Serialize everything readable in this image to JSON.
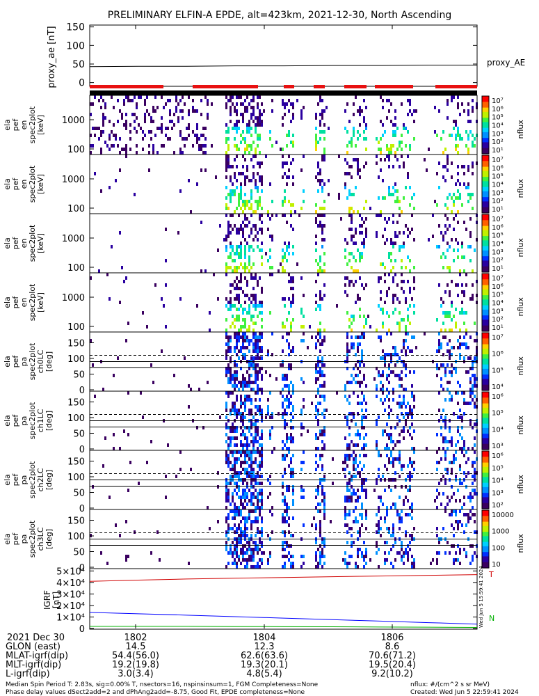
{
  "page_title": "PRELIMINARY ELFIN-A EPDE, alt=423km, 2021-12-30, North Ascending",
  "chart_data": [
    {
      "type": "line",
      "ylabel": "proxy_ae [nT]",
      "yticks": [
        150,
        100,
        50,
        0
      ],
      "ylim": [
        -10,
        155
      ],
      "series": [
        {
          "name": "proxy_AE",
          "values": [
            43,
            44,
            44,
            45,
            45,
            46,
            46,
            47,
            47
          ]
        }
      ]
    },
    {
      "type": "heatmap",
      "ylabel_lines": [
        "ela",
        "pef",
        "en",
        "spec2plot",
        "[keV]"
      ],
      "yticks": [
        1000,
        100
      ],
      "colorbar_label": "nflux",
      "colorbar_ticks": [
        "10⁷",
        "10⁶",
        "10⁵",
        "10⁴",
        "10³",
        "10²",
        "10¹"
      ]
    },
    {
      "type": "heatmap",
      "ylabel_lines": [
        "ela",
        "pef",
        "en",
        "spec2plot",
        "[keV]"
      ],
      "yticks": [
        1000,
        100
      ],
      "colorbar_label": "nflux",
      "colorbar_ticks": [
        "10⁷",
        "10⁶",
        "10⁵",
        "10⁴",
        "10³",
        "10²",
        "10¹"
      ]
    },
    {
      "type": "heatmap",
      "ylabel_lines": [
        "ela",
        "pef",
        "en",
        "spec2plot",
        "[keV]"
      ],
      "yticks": [
        1000,
        100
      ],
      "colorbar_label": "nflux",
      "colorbar_ticks": [
        "10⁷",
        "10⁶",
        "10⁵",
        "10⁴",
        "10³",
        "10²",
        "10¹"
      ]
    },
    {
      "type": "heatmap",
      "ylabel_lines": [
        "ela",
        "pef",
        "en",
        "spec2plot",
        "[keV]"
      ],
      "yticks": [
        1000,
        100
      ],
      "colorbar_label": "nflux",
      "colorbar_ticks": [
        "10⁷",
        "10⁶",
        "10⁵",
        "10⁴",
        "10³",
        "10²",
        "10¹"
      ]
    },
    {
      "type": "heatmap",
      "ylabel_lines": [
        "ela",
        "pef",
        "pa",
        "spec2plot",
        "ch0LC",
        "[deg]"
      ],
      "yticks": [
        150,
        100,
        50,
        0
      ],
      "colorbar_label": "nflux",
      "colorbar_ticks": [
        "10⁷",
        "10⁶",
        "10⁵",
        "10⁴"
      ]
    },
    {
      "type": "heatmap",
      "ylabel_lines": [
        "ela",
        "pef",
        "pa",
        "spec2plot",
        "ch1LC",
        "[deg]"
      ],
      "yticks": [
        150,
        100,
        50,
        0
      ],
      "colorbar_label": "nflux",
      "colorbar_ticks": [
        "10⁶",
        "10⁵",
        "10⁴",
        "10³"
      ]
    },
    {
      "type": "heatmap",
      "ylabel_lines": [
        "ela",
        "pef",
        "pa",
        "spec2plot",
        "ch2LC",
        "[deg]"
      ],
      "yticks": [
        150,
        100,
        50,
        0
      ],
      "colorbar_label": "nflux",
      "colorbar_ticks": [
        "10⁶",
        "10⁵",
        "10⁴",
        "10³",
        "10²"
      ]
    },
    {
      "type": "heatmap",
      "ylabel_lines": [
        "ela",
        "pef",
        "pa",
        "spec2plot",
        "ch3LC",
        "[deg]"
      ],
      "yticks": [
        150,
        100,
        50,
        0
      ],
      "colorbar_label": "nflux",
      "colorbar_ticks": [
        "10000",
        "1000",
        "100",
        "10"
      ]
    },
    {
      "type": "line",
      "ylabel_lines": [
        "IGRF",
        "[nT]"
      ],
      "yticks": [
        "5×10⁴",
        "4×10⁴",
        "3×10⁴",
        "2×10⁴",
        "1×10⁴",
        "0"
      ],
      "ylim": [
        0,
        52000
      ],
      "series": [
        {
          "name": "",
          "color": "#d00000",
          "values": [
            41000,
            42000,
            43000,
            43700,
            44300,
            45000,
            45600,
            46200,
            46800
          ]
        },
        {
          "name": "",
          "color": "#0000ff",
          "values": [
            14000,
            12800,
            11600,
            10300,
            9000,
            7700,
            6400,
            5100,
            3800
          ]
        },
        {
          "name": "",
          "color": "#00b000",
          "values": [
            1800,
            1800,
            1800,
            1700,
            1600,
            1500,
            1300,
            1100,
            900
          ]
        }
      ],
      "side_letters": [
        "T",
        "N"
      ]
    }
  ],
  "time_axis": {
    "row_label": "2021 Dec 30",
    "ticks": [
      "1802",
      "1804",
      "1806"
    ]
  },
  "ephemeris": [
    {
      "label": "GLON (east)",
      "values": [
        "14.5",
        "12.3",
        "8.6"
      ]
    },
    {
      "label": "MLAT-igrf(dip)",
      "values": [
        "54.4(56.0)",
        "62.6(63.6)",
        "70.6(71.2)"
      ]
    },
    {
      "label": "MLT-igrf(dip)",
      "values": [
        "19.2(19.8)",
        "19.3(20.1)",
        "19.5(20.4)"
      ]
    },
    {
      "label": "L-igrf(dip)",
      "values": [
        "3.0(3.4)",
        "4.8(5.4)",
        "9.2(10.2)"
      ]
    }
  ],
  "footer": {
    "line1": "Median Spin Period T: 2.83s, sig=0.00% T, nsectors=16, nspinsinsum=1, FGM Completeness=None",
    "line2": "Phase delay values dSect2add=2 and dPhAng2add=-8.75, Good Fit, EPDE completeness=None",
    "units": "nflux: #/(cm^2 s sr MeV)",
    "created": "Created: Wed Jun  5 22:59:41 2024",
    "vertical_stamp": "Wed Jun  5 15:59:41 2024"
  },
  "colors": {
    "red_bar": "#e81010",
    "black_bar": "#000000"
  }
}
